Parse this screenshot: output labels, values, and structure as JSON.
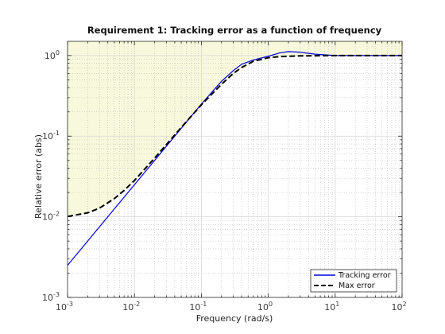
{
  "chart_data": {
    "type": "line",
    "title": "Requirement 1: Tracking error as a function of frequency",
    "xlabel": "Frequency (rad/s)",
    "ylabel": "Relative error (abs)",
    "xscale": "log",
    "yscale": "log",
    "xlim": [
      0.001,
      100
    ],
    "ylim": [
      0.001,
      1.5
    ],
    "x_ticks": [
      {
        "value": 0.001,
        "base": "10",
        "exp": "-3"
      },
      {
        "value": 0.01,
        "base": "10",
        "exp": "-2"
      },
      {
        "value": 0.1,
        "base": "10",
        "exp": "-1"
      },
      {
        "value": 1,
        "base": "10",
        "exp": "0"
      },
      {
        "value": 10,
        "base": "10",
        "exp": "1"
      },
      {
        "value": 100,
        "base": "10",
        "exp": "2"
      }
    ],
    "y_ticks": [
      {
        "value": 0.001,
        "base": "10",
        "exp": "-3"
      },
      {
        "value": 0.01,
        "base": "10",
        "exp": "-2"
      },
      {
        "value": 0.1,
        "base": "10",
        "exp": "-1"
      },
      {
        "value": 1,
        "base": "10",
        "exp": "0"
      }
    ],
    "grid": true,
    "shaded_region": {
      "color": "#f8f8dc",
      "edge_color": "#d8d8b0",
      "meaning": "above max error"
    },
    "legend": {
      "position": "bottom-right"
    },
    "series": [
      {
        "name": "Tracking error",
        "color": "#0000dd",
        "style": "solid",
        "x": [
          0.001,
          0.002,
          0.003,
          0.005,
          0.007,
          0.01,
          0.02,
          0.05,
          0.1,
          0.2,
          0.3,
          0.4,
          0.6,
          1,
          1.5,
          2,
          3,
          5,
          10,
          20,
          100
        ],
        "y": [
          0.0025,
          0.005,
          0.0075,
          0.0125,
          0.0175,
          0.025,
          0.05,
          0.125,
          0.25,
          0.48,
          0.65,
          0.78,
          0.88,
          0.98,
          1.08,
          1.12,
          1.1,
          1.04,
          1.0,
          1.0,
          1.0
        ]
      },
      {
        "name": "Max error",
        "color": "#000000",
        "style": "dashed",
        "x": [
          0.001,
          0.002,
          0.003,
          0.005,
          0.007,
          0.01,
          0.02,
          0.05,
          0.1,
          0.2,
          0.3,
          0.4,
          0.6,
          1,
          1.5,
          2,
          3,
          5,
          10,
          20,
          100
        ],
        "y": [
          0.0101,
          0.0112,
          0.0128,
          0.0168,
          0.0212,
          0.0282,
          0.0534,
          0.128,
          0.245,
          0.44,
          0.6,
          0.71,
          0.85,
          0.94,
          0.97,
          0.98,
          0.99,
          0.995,
          1.0,
          1.0,
          1.0
        ]
      }
    ]
  }
}
